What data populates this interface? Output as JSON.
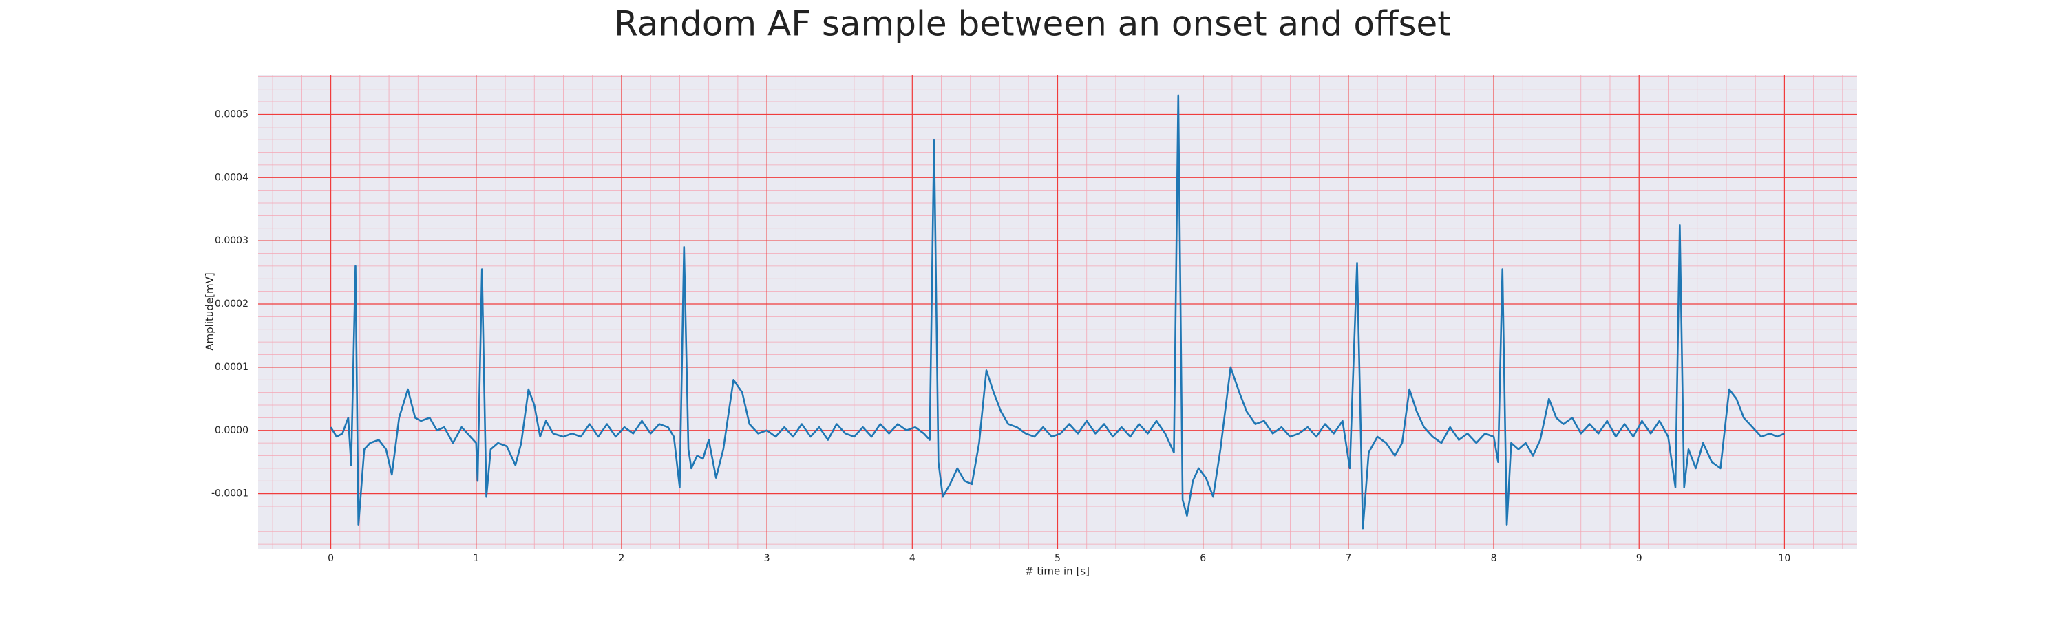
{
  "chart_data": {
    "type": "line",
    "title": "Random AF sample between an onset and offset",
    "x_label": "# time in [s]",
    "y_label": "Amplitude[mV]",
    "color": "#1f77b4",
    "grid": true,
    "minor_grid": true,
    "xlim": [
      -0.5,
      10.5
    ],
    "ylim": [
      -0.0001875,
      0.0005625
    ],
    "xticks": [
      0,
      1,
      2,
      3,
      4,
      5,
      6,
      7,
      8,
      9,
      10
    ],
    "yticks": [
      -0.0001,
      {
        "value": 0,
        "label": "0.0000"
      },
      0.0001,
      0.0002,
      0.0003,
      0.0004,
      0.0005
    ],
    "x": [
      0,
      0.04,
      0.08,
      0.12,
      0.14,
      0.17,
      0.19,
      0.23,
      0.27,
      0.33,
      0.38,
      0.42,
      0.47,
      0.53,
      0.58,
      0.62,
      0.68,
      0.73,
      0.78,
      0.84,
      0.9,
      0.96,
      1.0,
      1.01,
      1.04,
      1.07,
      1.1,
      1.15,
      1.21,
      1.27,
      1.31,
      1.36,
      1.4,
      1.44,
      1.48,
      1.53,
      1.6,
      1.66,
      1.72,
      1.78,
      1.84,
      1.9,
      1.96,
      2.02,
      2.08,
      2.14,
      2.2,
      2.26,
      2.32,
      2.36,
      2.4,
      2.43,
      2.46,
      2.48,
      2.52,
      2.56,
      2.6,
      2.65,
      2.7,
      2.77,
      2.83,
      2.88,
      2.94,
      3.0,
      3.06,
      3.12,
      3.18,
      3.24,
      3.3,
      3.36,
      3.42,
      3.48,
      3.54,
      3.6,
      3.66,
      3.72,
      3.78,
      3.84,
      3.9,
      3.96,
      4.02,
      4.08,
      4.12,
      4.15,
      4.18,
      4.21,
      4.26,
      4.31,
      4.36,
      4.41,
      4.46,
      4.51,
      4.56,
      4.61,
      4.66,
      4.72,
      4.78,
      4.84,
      4.9,
      4.96,
      5.02,
      5.08,
      5.14,
      5.2,
      5.26,
      5.32,
      5.38,
      5.44,
      5.5,
      5.56,
      5.62,
      5.68,
      5.74,
      5.8,
      5.83,
      5.86,
      5.89,
      5.93,
      5.97,
      6.02,
      6.07,
      6.12,
      6.19,
      6.25,
      6.3,
      6.36,
      6.42,
      6.48,
      6.54,
      6.6,
      6.66,
      6.72,
      6.78,
      6.84,
      6.9,
      6.96,
      7.01,
      7.06,
      7.1,
      7.14,
      7.2,
      7.26,
      7.32,
      7.37,
      7.42,
      7.47,
      7.52,
      7.58,
      7.64,
      7.7,
      7.76,
      7.82,
      7.88,
      7.94,
      8.0,
      8.03,
      8.06,
      8.09,
      8.12,
      8.17,
      8.22,
      8.27,
      8.32,
      8.38,
      8.43,
      8.48,
      8.54,
      8.6,
      8.66,
      8.72,
      8.78,
      8.84,
      8.9,
      8.96,
      9.02,
      9.08,
      9.14,
      9.2,
      9.25,
      9.28,
      9.31,
      9.34,
      9.39,
      9.44,
      9.5,
      9.56,
      9.62,
      9.67,
      9.72,
      9.78,
      9.84,
      9.9,
      9.95,
      10.0
    ],
    "values": [
      5e-06,
      -1e-05,
      -5e-06,
      2e-05,
      -5.5e-05,
      0.00026,
      -0.00015,
      -3e-05,
      -2e-05,
      -1.5e-05,
      -3e-05,
      -7e-05,
      2e-05,
      6.5e-05,
      2e-05,
      1.5e-05,
      2e-05,
      0,
      5e-06,
      -2e-05,
      5e-06,
      -1e-05,
      -2e-05,
      -8e-05,
      0.000255,
      -0.000105,
      -3e-05,
      -2e-05,
      -2.5e-05,
      -5.5e-05,
      -2e-05,
      6.5e-05,
      4e-05,
      -1e-05,
      1.5e-05,
      -5e-06,
      -1e-05,
      -5e-06,
      -1e-05,
      1e-05,
      -1e-05,
      1e-05,
      -1e-05,
      5e-06,
      -5e-06,
      1.5e-05,
      -5e-06,
      1e-05,
      5e-06,
      -1e-05,
      -9e-05,
      0.00029,
      -3e-05,
      -6e-05,
      -4e-05,
      -4.5e-05,
      -1.5e-05,
      -7.5e-05,
      -3e-05,
      8e-05,
      6e-05,
      1e-05,
      -5e-06,
      0,
      -1e-05,
      5e-06,
      -1e-05,
      1e-05,
      -1e-05,
      5e-06,
      -1.5e-05,
      1e-05,
      -5e-06,
      -1e-05,
      5e-06,
      -1e-05,
      1e-05,
      -5e-06,
      1e-05,
      0,
      5e-06,
      -5e-06,
      -1.5e-05,
      0.00046,
      -5e-05,
      -0.000105,
      -8.5e-05,
      -6e-05,
      -8e-05,
      -8.5e-05,
      -2e-05,
      9.5e-05,
      6e-05,
      3e-05,
      1e-05,
      5e-06,
      -5e-06,
      -1e-05,
      5e-06,
      -1e-05,
      -5e-06,
      1e-05,
      -5e-06,
      1.5e-05,
      -5e-06,
      1e-05,
      -1e-05,
      5e-06,
      -1e-05,
      1e-05,
      -5e-06,
      1.5e-05,
      -5e-06,
      -3.5e-05,
      0.00053,
      -0.00011,
      -0.000135,
      -8e-05,
      -6e-05,
      -7.5e-05,
      -0.000105,
      -3e-05,
      0.0001,
      6e-05,
      3e-05,
      1e-05,
      1.5e-05,
      -5e-06,
      5e-06,
      -1e-05,
      -5e-06,
      5e-06,
      -1e-05,
      1e-05,
      -5e-06,
      1.5e-05,
      -6e-05,
      0.000265,
      -0.000155,
      -3.5e-05,
      -1e-05,
      -2e-05,
      -4e-05,
      -2e-05,
      6.5e-05,
      3e-05,
      5e-06,
      -1e-05,
      -2e-05,
      5e-06,
      -1.5e-05,
      -5e-06,
      -2e-05,
      -5e-06,
      -1e-05,
      -5e-05,
      0.000255,
      -0.00015,
      -2e-05,
      -3e-05,
      -2e-05,
      -4e-05,
      -1.5e-05,
      5e-05,
      2e-05,
      1e-05,
      2e-05,
      -5e-06,
      1e-05,
      -5e-06,
      1.5e-05,
      -1e-05,
      1e-05,
      -1e-05,
      1.5e-05,
      -5e-06,
      1.5e-05,
      -1e-05,
      -9e-05,
      0.000325,
      -9e-05,
      -3e-05,
      -6e-05,
      -2e-05,
      -5e-05,
      -6e-05,
      6.5e-05,
      5e-05,
      2e-05,
      5e-06,
      -1e-05,
      -5e-06,
      -1e-05,
      -5e-06
    ]
  }
}
